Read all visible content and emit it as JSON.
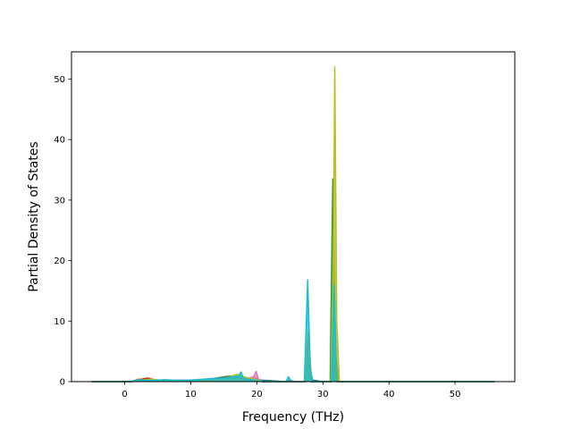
{
  "chart_data": {
    "type": "line",
    "title": "",
    "xlabel": "Frequency (THz)",
    "ylabel": "Partial Density of States",
    "xlim": [
      -8.05,
      59.05
    ],
    "ylim": [
      0,
      54.5
    ],
    "x_ticks": [
      0,
      10,
      20,
      30,
      40,
      50
    ],
    "y_ticks": [
      0,
      10,
      20,
      30,
      40,
      50
    ],
    "grid": false,
    "legend": "none",
    "series": [
      {
        "color": "#1f77b4",
        "points": [
          [
            -5,
            0
          ],
          [
            1,
            0
          ],
          [
            2,
            0.3
          ],
          [
            3,
            0.2
          ],
          [
            4,
            0.3
          ],
          [
            6,
            0.2
          ],
          [
            9,
            0.2
          ],
          [
            12,
            0.3
          ],
          [
            14,
            0.5
          ],
          [
            16,
            0.6
          ],
          [
            18,
            0.5
          ],
          [
            20,
            0.3
          ],
          [
            24.5,
            0
          ],
          [
            25,
            0.3
          ],
          [
            25.5,
            0
          ],
          [
            27.3,
            0
          ],
          [
            27.8,
            1.5
          ],
          [
            28.2,
            0.3
          ],
          [
            30,
            0
          ],
          [
            31.2,
            0
          ],
          [
            31.6,
            5
          ],
          [
            32,
            2
          ],
          [
            32.4,
            0
          ],
          [
            56,
            0
          ]
        ]
      },
      {
        "color": "#ff7f0e",
        "points": [
          [
            -5,
            0
          ],
          [
            1,
            0
          ],
          [
            2,
            0.4
          ],
          [
            3,
            0.3
          ],
          [
            4,
            0.2
          ],
          [
            7,
            0.1
          ],
          [
            10,
            0.2
          ],
          [
            13,
            0.4
          ],
          [
            15,
            0.5
          ],
          [
            17,
            0.6
          ],
          [
            19,
            0.5
          ],
          [
            20,
            0.6
          ],
          [
            21,
            0
          ],
          [
            27.3,
            0
          ],
          [
            27.8,
            8
          ],
          [
            28.3,
            0
          ],
          [
            31.2,
            0
          ],
          [
            31.7,
            4
          ],
          [
            32,
            2
          ],
          [
            32.4,
            0
          ],
          [
            56,
            0
          ]
        ]
      },
      {
        "color": "#2ca02c",
        "points": [
          [
            -5,
            0
          ],
          [
            1,
            0
          ],
          [
            3,
            0.4
          ],
          [
            5,
            0.2
          ],
          [
            8,
            0.2
          ],
          [
            12,
            0.3
          ],
          [
            15,
            0.8
          ],
          [
            16.5,
            1.0
          ],
          [
            18,
            0.6
          ],
          [
            20,
            0.4
          ],
          [
            21,
            0
          ],
          [
            27.3,
            0
          ],
          [
            27.8,
            2
          ],
          [
            28.2,
            0
          ],
          [
            31.1,
            0
          ],
          [
            31.5,
            33.5
          ],
          [
            31.9,
            5
          ],
          [
            32.4,
            0
          ],
          [
            56,
            0
          ]
        ]
      },
      {
        "color": "#d62728",
        "points": [
          [
            -5,
            0
          ],
          [
            1,
            0
          ],
          [
            2,
            0.3
          ],
          [
            3.5,
            0.6
          ],
          [
            5,
            0.2
          ],
          [
            9,
            0.2
          ],
          [
            13,
            0.3
          ],
          [
            16,
            0.5
          ],
          [
            18,
            0.4
          ],
          [
            21,
            0
          ],
          [
            27.3,
            0
          ],
          [
            27.8,
            3
          ],
          [
            28.2,
            0
          ],
          [
            31.3,
            0
          ],
          [
            31.7,
            3
          ],
          [
            32.2,
            0
          ],
          [
            56,
            0
          ]
        ]
      },
      {
        "color": "#9467bd",
        "points": [
          [
            -5,
            0
          ],
          [
            1,
            0
          ],
          [
            2,
            0.2
          ],
          [
            4,
            0.3
          ],
          [
            7,
            0.1
          ],
          [
            10,
            0.2
          ],
          [
            14,
            0.3
          ],
          [
            17,
            0.4
          ],
          [
            20,
            0.2
          ],
          [
            21,
            0
          ],
          [
            27.3,
            0
          ],
          [
            27.8,
            1
          ],
          [
            28.2,
            0
          ],
          [
            31.3,
            0
          ],
          [
            31.7,
            2
          ],
          [
            32.2,
            0
          ],
          [
            56,
            0
          ]
        ]
      },
      {
        "color": "#8c564b",
        "points": [
          [
            -5,
            0
          ],
          [
            1,
            0
          ],
          [
            2,
            0.3
          ],
          [
            4,
            0.2
          ],
          [
            6,
            0.3
          ],
          [
            9,
            0.2
          ],
          [
            12,
            0.3
          ],
          [
            15,
            0.7
          ],
          [
            16,
            0.9
          ],
          [
            18,
            0.5
          ],
          [
            21,
            0
          ],
          [
            27.3,
            0
          ],
          [
            27.7,
            4
          ],
          [
            28.2,
            0
          ],
          [
            31.3,
            0
          ],
          [
            31.8,
            2
          ],
          [
            32.3,
            0
          ],
          [
            56,
            0
          ]
        ]
      },
      {
        "color": "#e377c2",
        "points": [
          [
            -5,
            0
          ],
          [
            1,
            0
          ],
          [
            2,
            0.2
          ],
          [
            4,
            0.3
          ],
          [
            7,
            0.2
          ],
          [
            10,
            0.2
          ],
          [
            14,
            0.6
          ],
          [
            16,
            0.4
          ],
          [
            18,
            0.3
          ],
          [
            19.5,
            0.8
          ],
          [
            19.9,
            1.7
          ],
          [
            20.3,
            0.2
          ],
          [
            21,
            0
          ],
          [
            27.3,
            0
          ],
          [
            27.7,
            2
          ],
          [
            28.1,
            0
          ],
          [
            31.3,
            0
          ],
          [
            31.7,
            1
          ],
          [
            32.1,
            0
          ],
          [
            56,
            0
          ]
        ]
      },
      {
        "color": "#7f7f7f",
        "points": [
          [
            -5,
            0
          ],
          [
            1,
            0
          ],
          [
            3,
            0.2
          ],
          [
            6,
            0.2
          ],
          [
            9,
            0.1
          ],
          [
            12,
            0.2
          ],
          [
            15,
            0.4
          ],
          [
            18,
            0.3
          ],
          [
            21,
            0
          ],
          [
            27.3,
            0
          ],
          [
            27.8,
            1
          ],
          [
            28.2,
            0
          ],
          [
            31.3,
            0
          ],
          [
            31.7,
            2
          ],
          [
            32.1,
            0
          ],
          [
            56,
            0
          ]
        ]
      },
      {
        "color": "#bcbd22",
        "points": [
          [
            -5,
            0
          ],
          [
            1,
            0
          ],
          [
            2,
            0.2
          ],
          [
            4,
            0.4
          ],
          [
            6,
            0.2
          ],
          [
            9,
            0.2
          ],
          [
            12,
            0.3
          ],
          [
            15,
            0.5
          ],
          [
            17,
            1.2
          ],
          [
            18,
            0.8
          ],
          [
            20,
            0.3
          ],
          [
            21,
            0
          ],
          [
            27.3,
            0
          ],
          [
            27.8,
            5
          ],
          [
            28.2,
            0
          ],
          [
            31.2,
            0
          ],
          [
            31.6,
            20
          ],
          [
            31.8,
            52
          ],
          [
            32.1,
            10
          ],
          [
            32.5,
            0
          ],
          [
            56,
            0
          ]
        ]
      },
      {
        "color": "#17becf",
        "points": [
          [
            -5,
            0
          ],
          [
            1,
            0
          ],
          [
            2,
            0.3
          ],
          [
            4,
            0.2
          ],
          [
            6,
            0.3
          ],
          [
            9,
            0.2
          ],
          [
            12,
            0.4
          ],
          [
            15,
            0.6
          ],
          [
            17.2,
            0.9
          ],
          [
            17.6,
            1.6
          ],
          [
            18,
            0.5
          ],
          [
            20,
            0.2
          ],
          [
            21,
            0
          ],
          [
            24.4,
            0
          ],
          [
            24.8,
            0.8
          ],
          [
            25.2,
            0
          ],
          [
            27.2,
            0
          ],
          [
            27.7,
            16.8
          ],
          [
            28.1,
            2
          ],
          [
            28.5,
            0
          ],
          [
            31.3,
            0
          ],
          [
            31.7,
            16
          ],
          [
            32.1,
            0
          ],
          [
            56,
            0
          ]
        ]
      }
    ]
  }
}
